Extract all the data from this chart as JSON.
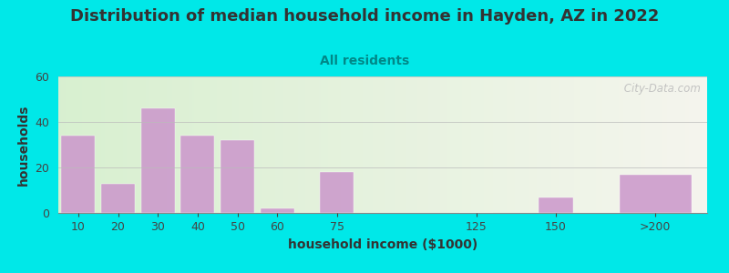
{
  "title": "Distribution of median household income in Hayden, AZ in 2022",
  "subtitle": "All residents",
  "xlabel": "household income ($1000)",
  "ylabel": "households",
  "bar_labels": [
    "10",
    "20",
    "30",
    "40",
    "50",
    "60",
    "75",
    "125",
    "150",
    ">200"
  ],
  "bar_values": [
    34,
    13,
    46,
    34,
    32,
    2,
    18,
    0,
    7,
    17
  ],
  "bar_color": "#cc99cc",
  "ylim": [
    0,
    60
  ],
  "yticks": [
    0,
    20,
    40,
    60
  ],
  "bg_outer": "#00e8e8",
  "title_color": "#333333",
  "subtitle_color": "#008888",
  "title_fontsize": 13,
  "subtitle_fontsize": 10,
  "axis_label_fontsize": 10,
  "tick_fontsize": 9,
  "watermark": " City-Data.com",
  "bar_positions": [
    0,
    1,
    2,
    3,
    4,
    5,
    6.5,
    10,
    12,
    14.5
  ],
  "bar_widths": [
    0.85,
    0.85,
    0.85,
    0.85,
    0.85,
    0.85,
    0.85,
    0.85,
    0.85,
    1.8
  ],
  "xlim": [
    -0.5,
    15.8
  ]
}
